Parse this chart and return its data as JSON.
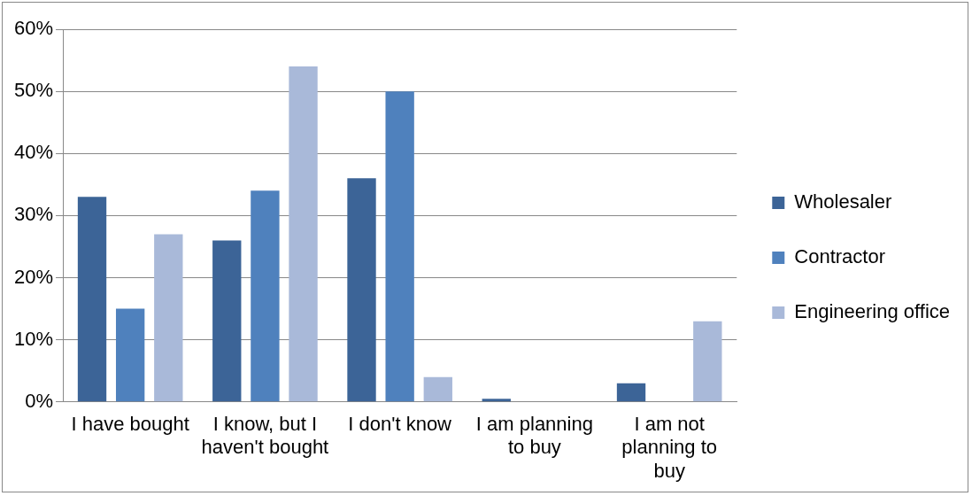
{
  "chart_data": {
    "type": "bar",
    "categories": [
      "I have bought",
      "I know, but I haven't bought",
      "I don't know",
      "I am planning to buy",
      "I am not planning to buy"
    ],
    "series": [
      {
        "name": "Wholesaler",
        "color": "#3c6497",
        "values": [
          33,
          26,
          36,
          0.5,
          3
        ]
      },
      {
        "name": "Contractor",
        "color": "#4f81bd",
        "values": [
          15,
          34,
          50,
          0,
          0
        ]
      },
      {
        "name": "Engineering office",
        "color": "#a9b9d9",
        "values": [
          27,
          54,
          4,
          0,
          13
        ]
      }
    ],
    "ylim": [
      0,
      60
    ],
    "yticks": [
      {
        "value": 0,
        "label": "0%"
      },
      {
        "value": 10,
        "label": "10%"
      },
      {
        "value": 20,
        "label": "20%"
      },
      {
        "value": 30,
        "label": "30%"
      },
      {
        "value": 40,
        "label": "40%"
      },
      {
        "value": 50,
        "label": "50%"
      },
      {
        "value": 60,
        "label": "60%"
      }
    ],
    "grid": "y",
    "legend": "right"
  }
}
